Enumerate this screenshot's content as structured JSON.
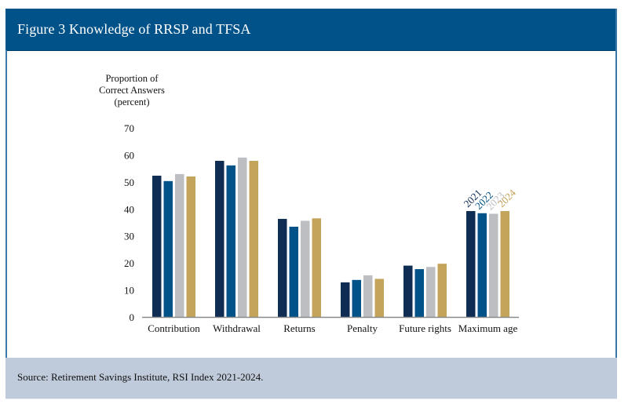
{
  "figure": {
    "title": "Figure 3 Knowledge of RRSP and TFSA",
    "source": "Source: Retirement Savings Institute, RSI Index 2021-2024."
  },
  "colors": {
    "header_bg": "#005288",
    "footer_bg": "#bfcadb",
    "series": {
      "2021": "#0f2d52",
      "2022": "#005288",
      "2023": "#bcbec2",
      "2024": "#c4a35a"
    }
  },
  "chart_data": {
    "type": "bar",
    "title": "Figure 3 Knowledge of RRSP and TFSA",
    "xlabel": "",
    "ylabel": [
      "Proportion of",
      "Correct Answers",
      "(percent)"
    ],
    "ylim": [
      0,
      70
    ],
    "yticks": [
      0,
      10,
      20,
      30,
      40,
      50,
      60,
      70
    ],
    "grid": false,
    "legend": "inline-above-last-group",
    "categories": [
      "Contribution",
      "Withdrawal",
      "Returns",
      "Penalty",
      "Future rights",
      "Maximum age"
    ],
    "series": [
      {
        "name": "2021",
        "color": "#0f2d52",
        "values": [
          52.3,
          57.8,
          36.3,
          12.8,
          19.0,
          39.2
        ]
      },
      {
        "name": "2022",
        "color": "#005288",
        "values": [
          50.3,
          56.1,
          33.4,
          13.7,
          17.7,
          38.4
        ]
      },
      {
        "name": "2023",
        "color": "#bcbec2",
        "values": [
          52.9,
          59.0,
          35.6,
          15.4,
          18.5,
          38.2
        ]
      },
      {
        "name": "2024",
        "color": "#c4a35a",
        "values": [
          52.0,
          57.8,
          36.5,
          14.1,
          19.7,
          39.2
        ]
      }
    ]
  }
}
